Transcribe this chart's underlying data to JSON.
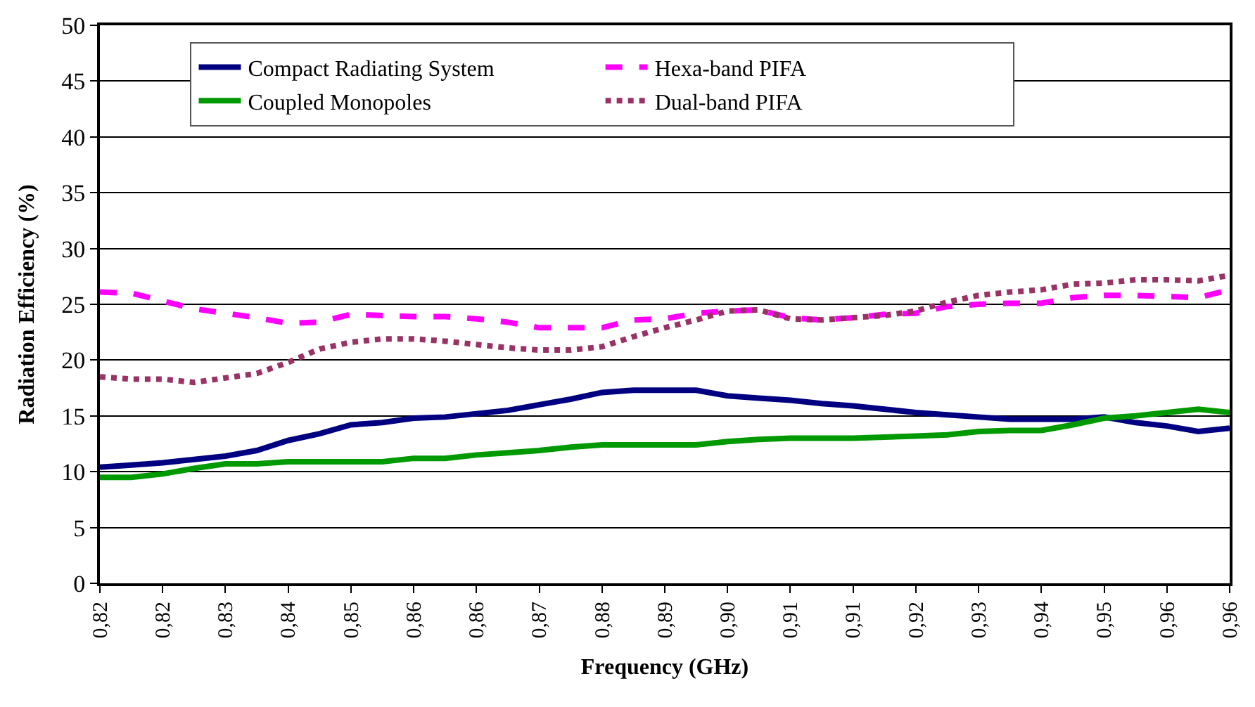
{
  "chart_data": {
    "type": "line",
    "xlabel": "Frequency (GHz)",
    "ylabel": "Radiation Efficiency (%)",
    "categories": [
      "0,82",
      null,
      "0,82",
      null,
      "0,83",
      null,
      "0,84",
      null,
      "0,85",
      null,
      "0,86",
      null,
      "0,86",
      null,
      "0,87",
      null,
      "0,88",
      null,
      "0,89",
      null,
      "0,90",
      null,
      "0,91",
      null,
      "0,91",
      null,
      "0,92",
      null,
      "0,93",
      null,
      "0,94",
      null,
      "0,95",
      null,
      "0,96",
      null,
      "0,96"
    ],
    "series": [
      {
        "name": "Compact Radiating System",
        "color": "#000080",
        "line_style": "solid",
        "values": [
          10.4,
          10.6,
          10.8,
          11.1,
          11.4,
          11.9,
          12.8,
          13.4,
          14.2,
          14.4,
          14.8,
          14.9,
          15.2,
          15.5,
          16.0,
          16.5,
          17.1,
          17.3,
          17.3,
          17.3,
          16.8,
          16.6,
          16.4,
          16.1,
          15.9,
          15.6,
          15.3,
          15.1,
          14.9,
          14.7,
          14.7,
          14.7,
          14.9,
          14.4,
          14.1,
          13.6,
          13.9
        ]
      },
      {
        "name": "Hexa-band PIFA",
        "color": "#ff00ff",
        "line_style": "dashed",
        "values": [
          26.1,
          26.0,
          25.3,
          24.6,
          24.2,
          23.8,
          23.3,
          23.4,
          24.1,
          24.0,
          23.9,
          23.9,
          23.7,
          23.4,
          22.9,
          22.9,
          22.9,
          23.6,
          23.7,
          24.2,
          24.4,
          24.5,
          23.8,
          23.6,
          23.8,
          24.1,
          24.2,
          24.8,
          25.0,
          25.1,
          25.1,
          25.6,
          25.8,
          25.8,
          25.7,
          25.6,
          26.3
        ]
      },
      {
        "name": "Coupled Monopoles",
        "color": "#009900",
        "line_style": "solid",
        "values": [
          9.5,
          9.5,
          9.8,
          10.3,
          10.7,
          10.7,
          10.9,
          10.9,
          10.9,
          10.9,
          11.2,
          11.2,
          11.5,
          11.7,
          11.9,
          12.2,
          12.4,
          12.4,
          12.4,
          12.4,
          12.7,
          12.9,
          13.0,
          13.0,
          13.0,
          13.1,
          13.2,
          13.3,
          13.6,
          13.7,
          13.7,
          14.2,
          14.8,
          15.0,
          15.3,
          15.6,
          15.3
        ]
      },
      {
        "name": "Dual-band PIFA",
        "color": "#993366",
        "line_style": "dotted",
        "values": [
          18.5,
          18.3,
          18.3,
          18.0,
          18.4,
          18.8,
          19.8,
          21.0,
          21.6,
          21.9,
          21.9,
          21.7,
          21.4,
          21.1,
          20.9,
          20.9,
          21.2,
          22.1,
          22.9,
          23.6,
          24.4,
          24.5,
          23.7,
          23.6,
          23.8,
          24.0,
          24.4,
          25.2,
          25.8,
          26.1,
          26.3,
          26.8,
          26.9,
          27.2,
          27.2,
          27.1,
          27.6
        ]
      }
    ],
    "ylim": [
      0,
      50
    ],
    "yticks": [
      0,
      5,
      10,
      15,
      20,
      25,
      30,
      35,
      40,
      45,
      50
    ],
    "grid": "y",
    "legend": "top",
    "marker": "none"
  }
}
